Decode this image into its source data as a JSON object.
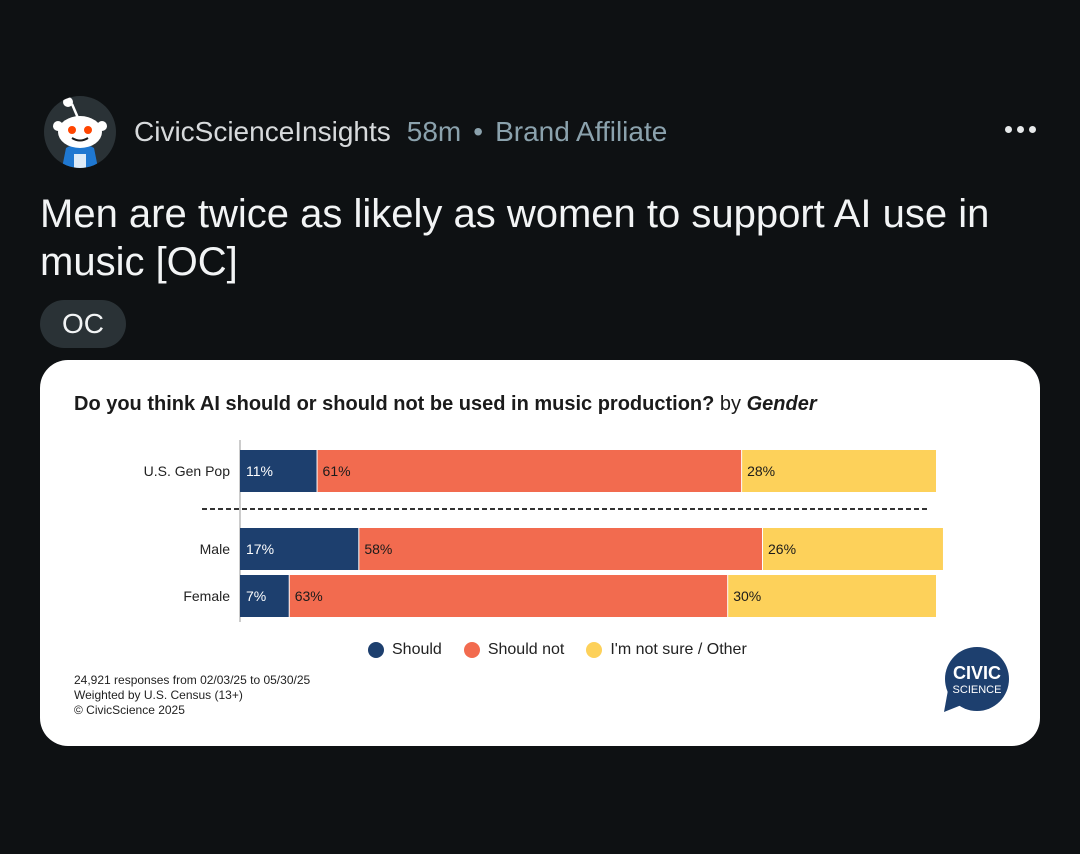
{
  "post": {
    "author": "CivicScienceInsights",
    "time": "58m",
    "separator": "•",
    "tag": "Brand Affiliate",
    "title": "Men are twice as likely as women to support AI use in music [OC]",
    "flair": "OC"
  },
  "chart_data": {
    "type": "bar",
    "orientation": "horizontal-stacked-100",
    "title": "Do you think AI should or should not be used in music production?",
    "title_by": "by",
    "title_dimension": "Gender",
    "categories": [
      "U.S. Gen Pop",
      "Male",
      "Female"
    ],
    "series": [
      {
        "name": "Should",
        "values": [
          11,
          17,
          7
        ],
        "color": "#1d3f6e",
        "label_color": "#ffffff"
      },
      {
        "name": "Should not",
        "values": [
          61,
          58,
          63
        ],
        "color": "#f26b4f",
        "label_color": "#1b1b1b"
      },
      {
        "name": "I'm not sure / Other",
        "values": [
          28,
          26,
          30
        ],
        "color": "#fdd15a",
        "label_color": "#1b1b1b"
      }
    ],
    "value_suffix": "%",
    "xlim": [
      0,
      100
    ],
    "separator_after_category": "U.S. Gen Pop",
    "legend_position": "bottom-center",
    "grid": false
  },
  "footnote": {
    "line1": "24,921 responses from 02/03/25 to 05/30/25",
    "line2": "Weighted by U.S. Census (13+)",
    "line3": "© CivicScience 2025"
  },
  "logo": {
    "line1": "CIVIC",
    "line2": "SCIENCE",
    "color": "#1d3f6e"
  },
  "icons": {
    "avatar": "reddit-snoo-icon",
    "more": "more-horizontal-icon"
  }
}
